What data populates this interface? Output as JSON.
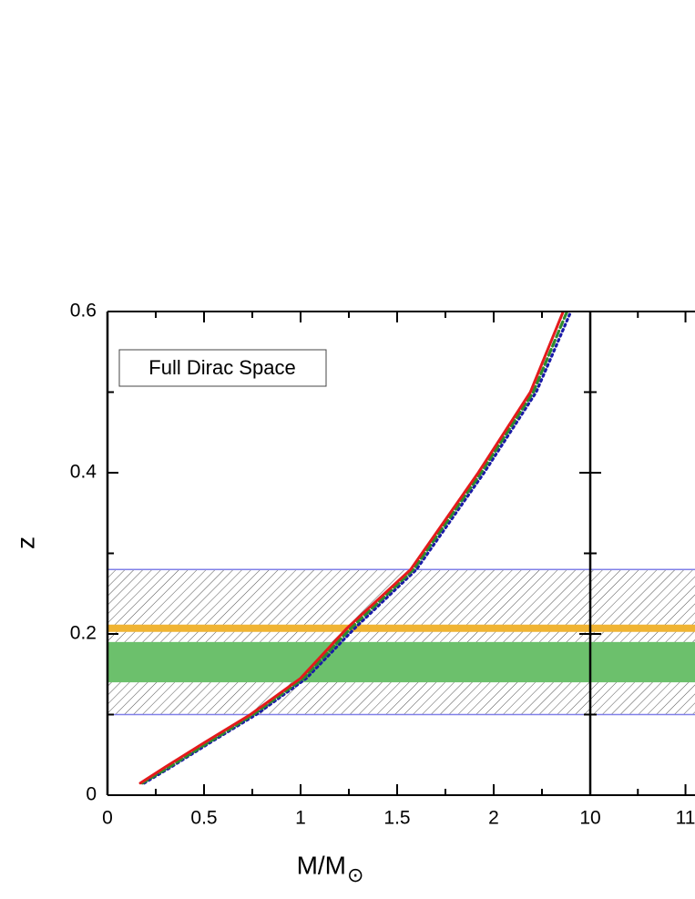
{
  "chart_data": [
    {
      "type": "line",
      "x_label": "M/M",
      "x_label_sub": "⊙",
      "y_label": "z",
      "annotation": "Full Dirac Space",
      "xlim": [
        0,
        2.5
      ],
      "ylim": [
        0,
        0.6
      ],
      "xticks": [
        0,
        0.5,
        1,
        1.5,
        2
      ],
      "yticks": [
        0,
        0.2,
        0.4,
        0.6
      ],
      "xminorticks": [
        0.25,
        0.75,
        1.25,
        1.75,
        2.25
      ],
      "yminorticks": [
        0.1,
        0.3,
        0.5
      ],
      "bands": [
        {
          "from": 0.1,
          "to": 0.28,
          "style": "hatch",
          "color": "#8080e8"
        },
        {
          "from": 0.14,
          "to": 0.19,
          "style": "fill",
          "color": "#6cc06c"
        }
      ],
      "hlines": [
        {
          "value": 0.207,
          "color": "#f0b433"
        }
      ],
      "series": [
        {
          "color": "#1a1aa8",
          "dash": "dotted",
          "x": [
            0.19,
            0.33,
            0.53,
            0.77,
            1.03,
            1.28,
            1.6,
            1.95,
            2.22,
            2.4
          ],
          "values": [
            0.015,
            0.035,
            0.065,
            0.1,
            0.145,
            0.207,
            0.28,
            0.4,
            0.5,
            0.6
          ]
        },
        {
          "color": "#2e8b2e",
          "dash": "dashed",
          "x": [
            0.18,
            0.32,
            0.52,
            0.755,
            1.015,
            1.26,
            1.585,
            1.935,
            2.205,
            2.38
          ],
          "values": [
            0.015,
            0.035,
            0.065,
            0.1,
            0.145,
            0.207,
            0.28,
            0.4,
            0.5,
            0.6
          ]
        },
        {
          "color": "#e41a1c",
          "dash": "solid",
          "x": [
            0.17,
            0.3,
            0.5,
            0.74,
            1.0,
            1.24,
            1.57,
            1.92,
            2.19,
            2.36
          ],
          "values": [
            0.015,
            0.035,
            0.065,
            0.1,
            0.145,
            0.207,
            0.28,
            0.4,
            0.5,
            0.6
          ]
        }
      ]
    },
    {
      "type": "line",
      "xlim": [
        10,
        11.1
      ],
      "ylim": [
        0,
        0.6
      ],
      "xticks": [
        10,
        11
      ],
      "yticks": [
        0,
        0.2,
        0.4,
        0.6
      ],
      "xminorticks": [
        10.5
      ],
      "yminorticks": [
        0.1,
        0.3,
        0.5
      ],
      "bands": [
        {
          "from": 0.1,
          "to": 0.28,
          "style": "hatch",
          "color": "#8080e8"
        },
        {
          "from": 0.14,
          "to": 0.19,
          "style": "fill",
          "color": "#6cc06c"
        }
      ],
      "hlines": [
        {
          "value": 0.207,
          "color": "#f0b433"
        }
      ],
      "series": []
    }
  ]
}
